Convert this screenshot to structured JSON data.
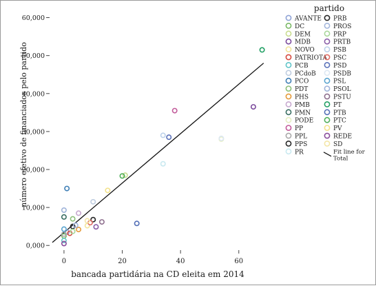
{
  "chart_data": {
    "type": "scatter",
    "xlabel": "bancada partidária na CD eleita em 2014",
    "ylabel": "número efetivo de financiados pelo partido",
    "xlim": [
      -4,
      74
    ],
    "ylim": [
      -500,
      63000
    ],
    "x_ticks": [
      0,
      20,
      40,
      60
    ],
    "y_ticks": [
      0,
      10000,
      20000,
      30000,
      40000,
      50000,
      60000
    ],
    "y_tick_labels": [
      "0,000",
      "10,000",
      "20,000",
      "30,000",
      "40,000",
      "50,000",
      "60,000"
    ],
    "grid": false,
    "legend": {
      "title": "partido",
      "placement": "right",
      "fit_label": "Fit line for Total"
    },
    "fit_line": {
      "x": [
        -4,
        68.5
      ],
      "y": [
        800,
        48000
      ]
    },
    "series": [
      {
        "name": "AVANTE",
        "color": "#8fa3d6",
        "points": [
          [
            1,
            3500
          ]
        ]
      },
      {
        "name": "DC",
        "color": "#79b864",
        "points": [
          [
            0,
            2500
          ]
        ]
      },
      {
        "name": "DEM",
        "color": "#c9dd8f",
        "points": [
          [
            21,
            18500
          ]
        ]
      },
      {
        "name": "MDB",
        "color": "#7b4a9c",
        "points": [
          [
            65,
            36500
          ]
        ]
      },
      {
        "name": "NOVO",
        "color": "#f3e59b",
        "points": [
          [
            8,
            5200
          ]
        ]
      },
      {
        "name": "PATRIOTA",
        "color": "#d64a3f",
        "points": [
          [
            2,
            3200
          ]
        ]
      },
      {
        "name": "PCB",
        "color": "#5fc4c8",
        "points": [
          [
            0,
            1300
          ]
        ]
      },
      {
        "name": "PCdoB",
        "color": "#bfcde0",
        "points": [
          [
            10,
            11500
          ]
        ]
      },
      {
        "name": "PCO",
        "color": "#3f7fb6",
        "points": [
          [
            1,
            15000
          ]
        ]
      },
      {
        "name": "PDT",
        "color": "#8cbf7a",
        "points": [
          [
            3,
            7000
          ]
        ]
      },
      {
        "name": "PHS",
        "color": "#e59a3a",
        "points": [
          [
            5,
            4200
          ]
        ]
      },
      {
        "name": "PMB",
        "color": "#c7a8cf",
        "points": [
          [
            5,
            8500
          ]
        ]
      },
      {
        "name": "PMN",
        "color": "#3a6e63",
        "points": [
          [
            0,
            7500
          ]
        ]
      },
      {
        "name": "PODE",
        "color": "#e6efc2",
        "points": [
          [
            54,
            28000
          ]
        ]
      },
      {
        "name": "PP",
        "color": "#c25b9a",
        "points": [
          [
            38,
            35500
          ]
        ]
      },
      {
        "name": "PPL",
        "color": "#a9a9a9",
        "points": [
          [
            0,
            3000
          ]
        ]
      },
      {
        "name": "PPS",
        "color": "#262626",
        "points": [
          [
            10,
            6800
          ]
        ]
      },
      {
        "name": "PR",
        "color": "#c9e9f0",
        "points": [
          [
            34,
            21500
          ]
        ]
      },
      {
        "name": "PRB",
        "color": "#262626",
        "points": [
          [
            3,
            5000
          ]
        ]
      },
      {
        "name": "PROS",
        "color": "#a3b6dc",
        "points": [
          [
            4,
            5300
          ]
        ]
      },
      {
        "name": "PRP",
        "color": "#a8d79a",
        "points": [
          [
            3,
            3700
          ]
        ]
      },
      {
        "name": "PRTB",
        "color": "#8a5ea8",
        "points": [
          [
            11,
            4900
          ]
        ]
      },
      {
        "name": "PSB",
        "color": "#bcd1ea",
        "points": [
          [
            34,
            29000
          ]
        ]
      },
      {
        "name": "PSC",
        "color": "#e06b64",
        "points": [
          [
            9,
            6000
          ]
        ]
      },
      {
        "name": "PSD",
        "color": "#5b72b9",
        "points": [
          [
            36,
            28500
          ]
        ]
      },
      {
        "name": "PSDB",
        "color": "#dde8f3",
        "points": [
          [
            54,
            28200
          ]
        ]
      },
      {
        "name": "PSL",
        "color": "#5aa4cf",
        "points": [
          [
            0,
            4300
          ]
        ]
      },
      {
        "name": "PSOL",
        "color": "#9fb3d9",
        "points": [
          [
            0,
            9300
          ]
        ]
      },
      {
        "name": "PSTU",
        "color": "#8e6f8e",
        "points": [
          [
            13,
            6200
          ]
        ]
      },
      {
        "name": "PT",
        "color": "#23a065",
        "points": [
          [
            68,
            51500
          ]
        ]
      },
      {
        "name": "PTB",
        "color": "#5470b7",
        "points": [
          [
            25,
            5800
          ]
        ]
      },
      {
        "name": "PTC",
        "color": "#4fae5a",
        "points": [
          [
            20,
            18300
          ]
        ]
      },
      {
        "name": "PV",
        "color": "#f3e28a",
        "points": [
          [
            15,
            14500
          ]
        ]
      },
      {
        "name": "REDE",
        "color": "#8a4d9c",
        "points": [
          [
            0,
            500
          ]
        ]
      },
      {
        "name": "SD",
        "color": "#f4e6a6",
        "points": [
          [
            8,
            6500
          ]
        ]
      }
    ]
  }
}
